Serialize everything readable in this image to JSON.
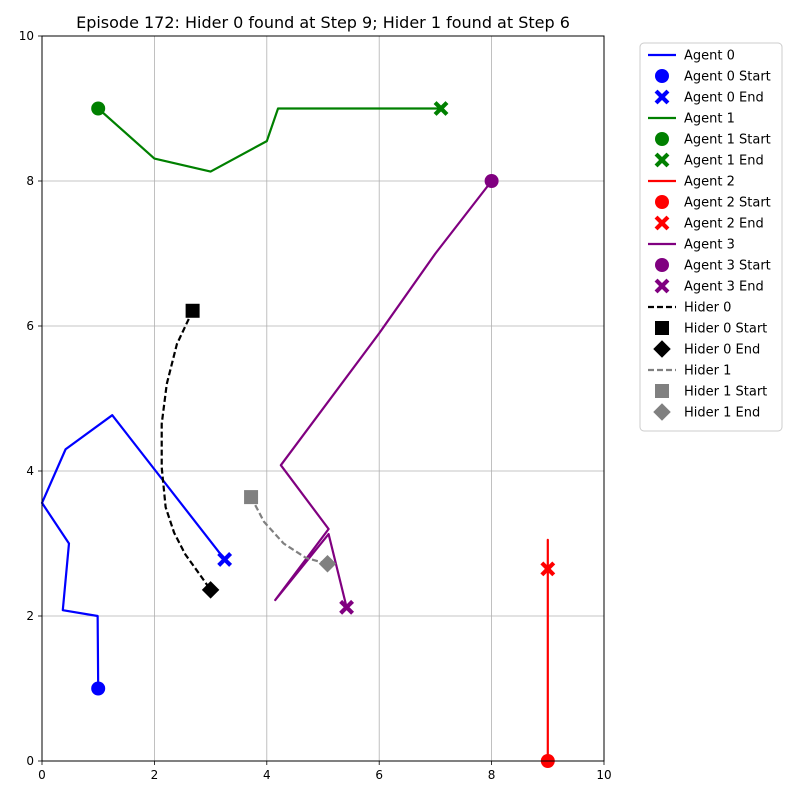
{
  "chart_data": {
    "type": "line",
    "title": "Episode 172: Hider 0 found at Step 9; Hider 1 found at Step 6",
    "xlabel": "",
    "ylabel": "",
    "xlim": [
      0,
      10
    ],
    "ylim": [
      0,
      10
    ],
    "xticks": [
      0,
      2,
      4,
      6,
      8,
      10
    ],
    "yticks": [
      0,
      2,
      4,
      6,
      8,
      10
    ],
    "grid": true,
    "legend_position": "outside-top-right",
    "series": [
      {
        "name": "Agent 0",
        "color": "#0000ff",
        "dash": "solid",
        "start_marker": "circle",
        "end_marker": "x",
        "start_label": "Agent 0 Start",
        "end_label": "Agent 0 End",
        "points": [
          [
            1.0,
            1.0
          ],
          [
            0.99,
            2.0
          ],
          [
            0.37,
            2.08
          ],
          [
            0.48,
            3.0
          ],
          [
            0.0,
            3.56
          ],
          [
            0.42,
            4.3
          ],
          [
            1.25,
            4.77
          ],
          [
            3.25,
            2.78
          ]
        ]
      },
      {
        "name": "Agent 1",
        "color": "#008000",
        "dash": "solid",
        "start_marker": "circle",
        "end_marker": "x",
        "start_label": "Agent 1 Start",
        "end_label": "Agent 1 End",
        "points": [
          [
            1.0,
            9.0
          ],
          [
            2.0,
            8.31
          ],
          [
            3.0,
            8.13
          ],
          [
            4.0,
            8.55
          ],
          [
            4.2,
            9.0
          ],
          [
            6.1,
            9.0
          ],
          [
            6.25,
            9.0
          ],
          [
            7.1,
            9.0
          ]
        ]
      },
      {
        "name": "Agent 2",
        "color": "#ff0000",
        "dash": "solid",
        "start_marker": "circle",
        "end_marker": "x",
        "start_label": "Agent 2 Start",
        "end_label": "Agent 2 End",
        "points": [
          [
            9.0,
            0.0
          ],
          [
            9.0,
            3.05
          ],
          [
            9.0,
            2.65
          ]
        ]
      },
      {
        "name": "Agent 3",
        "color": "#800080",
        "dash": "solid",
        "start_marker": "circle",
        "end_marker": "x",
        "start_label": "Agent 3 Start",
        "end_label": "Agent 3 End",
        "points": [
          [
            8.0,
            8.0
          ],
          [
            7.0,
            7.0
          ],
          [
            6.0,
            5.9
          ],
          [
            4.25,
            4.08
          ],
          [
            5.1,
            3.2
          ],
          [
            4.15,
            2.22
          ],
          [
            5.1,
            3.13
          ],
          [
            5.42,
            2.12
          ]
        ]
      },
      {
        "name": "Hider 0",
        "color": "#000000",
        "dash": "dashed",
        "start_marker": "square",
        "end_marker": "diamond",
        "start_label": "Hider 0 Start",
        "end_label": "Hider 0 End",
        "points": [
          [
            2.68,
            6.21
          ],
          [
            2.4,
            5.75
          ],
          [
            2.22,
            5.2
          ],
          [
            2.13,
            4.65
          ],
          [
            2.13,
            4.05
          ],
          [
            2.2,
            3.5
          ],
          [
            2.35,
            3.15
          ],
          [
            2.55,
            2.85
          ],
          [
            2.8,
            2.58
          ],
          [
            3.0,
            2.36
          ]
        ]
      },
      {
        "name": "Hider 1",
        "color": "#808080",
        "dash": "dashed",
        "start_marker": "square",
        "end_marker": "diamond",
        "start_label": "Hider 1 Start",
        "end_label": "Hider 1 End",
        "points": [
          [
            3.72,
            3.64
          ],
          [
            3.95,
            3.3
          ],
          [
            4.3,
            3.0
          ],
          [
            4.7,
            2.8
          ],
          [
            5.08,
            2.72
          ]
        ]
      }
    ]
  }
}
